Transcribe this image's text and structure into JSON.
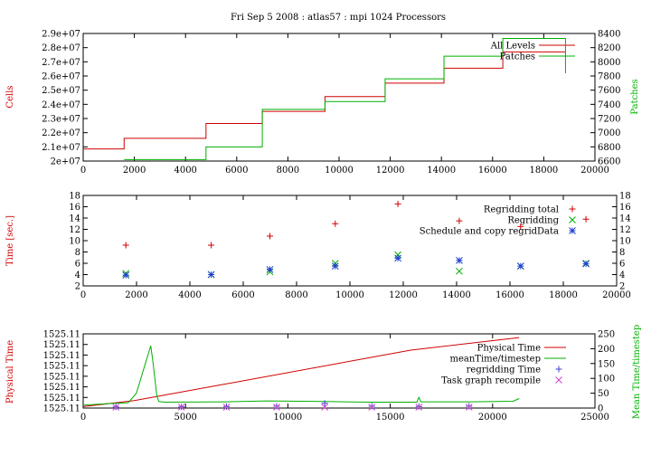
{
  "chart_data": [
    {
      "type": "line",
      "title": "Fri Sep 5 2008 : atlas57 : mpi 1024 Processors",
      "ylabel": "Cells",
      "y2label": "Patches",
      "xlim": [
        0,
        20000
      ],
      "xticks": [
        0,
        2000,
        4000,
        6000,
        8000,
        10000,
        12000,
        14000,
        16000,
        18000,
        20000
      ],
      "ylim": [
        20000000,
        29000000
      ],
      "yticks": [
        "2e+07",
        "2.1e+07",
        "2.2e+07",
        "2.3e+07",
        "2.4e+07",
        "2.5e+07",
        "2.6e+07",
        "2.7e+07",
        "2.8e+07",
        "2.9e+07"
      ],
      "y2lim": [
        6600,
        8400
      ],
      "y2ticks": [
        6600,
        6800,
        7000,
        7200,
        7400,
        7600,
        7800,
        8000,
        8200,
        8400
      ],
      "legend_position": "top-right",
      "series": [
        {
          "name": "All Levels",
          "color": "#d00000",
          "axis": "y",
          "step": true,
          "x": [
            0,
            1600,
            4800,
            7000,
            9450,
            11800,
            14100,
            16400,
            18850
          ],
          "y": [
            20850000,
            21600000,
            22650000,
            23500000,
            24550000,
            25500000,
            26550000,
            27700000,
            27700000
          ]
        },
        {
          "name": "Patches",
          "color": "#00b000",
          "axis": "y2",
          "step": true,
          "x": [
            1600,
            4800,
            7000,
            9450,
            11800,
            14100,
            16400,
            18850
          ],
          "y": [
            6620,
            6800,
            7330,
            7440,
            7760,
            8080,
            8330,
            7840
          ]
        }
      ]
    },
    {
      "type": "scatter",
      "ylabel": "Time [sec.]",
      "xlim": [
        0,
        20000
      ],
      "xticks": [
        0,
        2000,
        4000,
        6000,
        8000,
        10000,
        12000,
        14000,
        16000,
        18000,
        20000
      ],
      "ylim": [
        2,
        18
      ],
      "yticks": [
        2,
        4,
        6,
        8,
        10,
        12,
        14,
        16,
        18
      ],
      "legend_position": "top-right",
      "series": [
        {
          "name": "Regridding total",
          "color": "#d00000",
          "marker": "plus",
          "x": [
            1600,
            4800,
            7000,
            9450,
            11800,
            14100,
            16400,
            18850
          ],
          "y": [
            9.2,
            9.2,
            10.8,
            13.0,
            16.5,
            13.5,
            12.5,
            13.8
          ]
        },
        {
          "name": "Regridding",
          "color": "#00b000",
          "marker": "x",
          "x": [
            1600,
            4800,
            7000,
            9450,
            11800,
            14100,
            16400,
            18850
          ],
          "y": [
            4.2,
            4.0,
            4.5,
            6.0,
            7.5,
            4.6,
            5.5,
            6.0
          ]
        },
        {
          "name": "Schedule and copy regridData",
          "color": "#1f3fd0",
          "marker": "star",
          "x": [
            1600,
            4800,
            7000,
            9450,
            11800,
            14100,
            16400,
            18850
          ],
          "y": [
            3.9,
            4.0,
            4.9,
            5.5,
            6.9,
            6.5,
            5.5,
            5.9
          ]
        }
      ]
    },
    {
      "type": "line",
      "ylabel": "Physical Time",
      "y2label": "Mean Time/timestep",
      "xlim": [
        0,
        25000
      ],
      "xticks": [
        0,
        5000,
        10000,
        15000,
        20000,
        25000
      ],
      "ylim": [
        0,
        1
      ],
      "yticks": [
        "1525.11",
        "1525.11",
        "1525.11",
        "1525.11",
        "1525.11",
        "1525.11",
        "1525.11",
        "1525.11"
      ],
      "y2lim": [
        0,
        250
      ],
      "y2ticks": [
        0,
        50,
        100,
        150,
        200,
        250
      ],
      "legend_position": "top-right",
      "series": [
        {
          "name": "Physical Time",
          "color": "#d00000",
          "axis": "y",
          "x": [
            0,
            2500,
            16000,
            21300
          ],
          "y": [
            0.02,
            0.1,
            0.78,
            0.95
          ]
        },
        {
          "name": "meanTime/timestep",
          "color": "#00b000",
          "axis": "y2",
          "x": [
            0,
            1500,
            2200,
            2600,
            3300,
            3400,
            3600,
            3700,
            4000,
            7000,
            9000,
            11800,
            14000,
            16300,
            16400,
            16500,
            19000,
            21000,
            21300
          ],
          "y": [
            10,
            16,
            18,
            50,
            210,
            160,
            40,
            22,
            20,
            21,
            24,
            22,
            20,
            20,
            36,
            21,
            21,
            23,
            32
          ]
        },
        {
          "name": "regridding Time",
          "color": "#4040d0",
          "marker": "plus",
          "axis": "y2",
          "x": [
            1600,
            4800,
            7000,
            9450,
            11800,
            14100,
            16400,
            18850
          ],
          "y": [
            4,
            4,
            5,
            6,
            16,
            6,
            5,
            6
          ]
        },
        {
          "name": "Task graph recompile",
          "color": "#d040d0",
          "marker": "x",
          "axis": "y2",
          "x": [
            1600,
            4800,
            7000,
            9450,
            11800,
            14100,
            16400,
            18850
          ],
          "y": [
            3,
            3,
            3,
            3,
            3,
            3,
            3,
            3
          ]
        }
      ]
    }
  ]
}
